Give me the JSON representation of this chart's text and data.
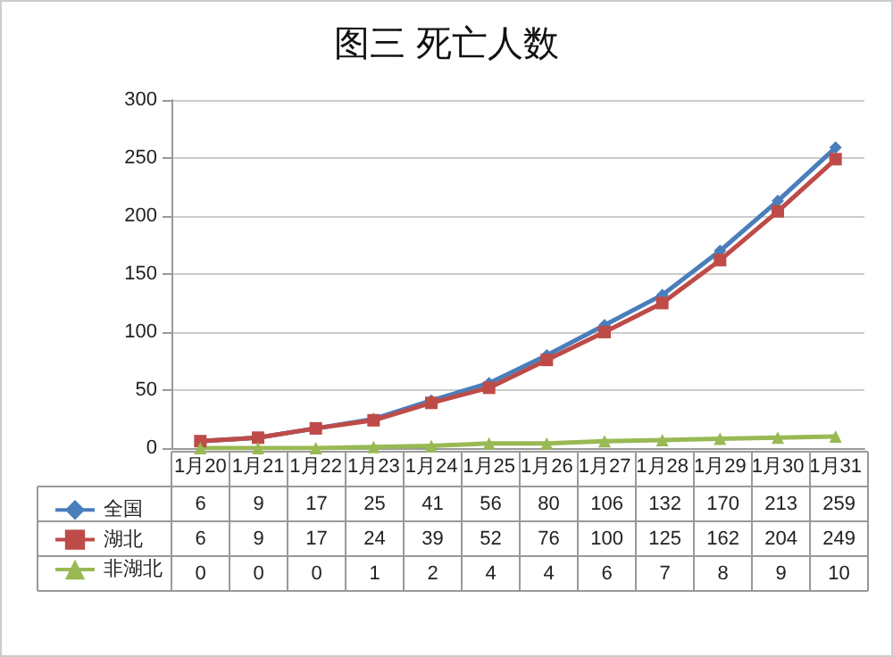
{
  "chart_data": {
    "type": "line",
    "title": "图三 死亡人数",
    "categories": [
      "1月20",
      "1月21",
      "1月22",
      "1月23",
      "1月24",
      "1月25",
      "1月26",
      "1月27",
      "1月28",
      "1月29",
      "1月30",
      "1月31"
    ],
    "series": [
      {
        "name": "全国",
        "color": "#4a7ebb",
        "marker": "diamond",
        "values": [
          6,
          9,
          17,
          25,
          41,
          56,
          80,
          106,
          132,
          170,
          213,
          259
        ]
      },
      {
        "name": "湖北",
        "color": "#be4b48",
        "marker": "square",
        "values": [
          6,
          9,
          17,
          24,
          39,
          52,
          76,
          100,
          125,
          162,
          204,
          249
        ]
      },
      {
        "name": "非湖北",
        "color": "#98b954",
        "marker": "triangle",
        "values": [
          0,
          0,
          0,
          1,
          2,
          4,
          4,
          6,
          7,
          8,
          9,
          10
        ]
      }
    ],
    "ylim": [
      0,
      300
    ],
    "yticks": [
      0,
      50,
      100,
      150,
      200,
      250,
      300
    ],
    "grid": "y",
    "legend": "bottom left",
    "data_labels": true
  }
}
